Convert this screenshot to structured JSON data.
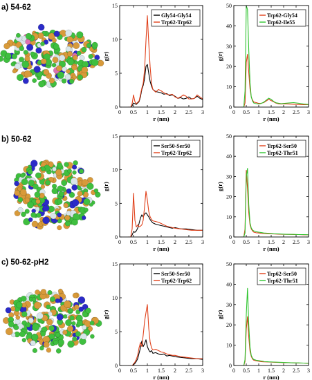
{
  "figure": {
    "rows": [
      {
        "label": "a) 54-62",
        "snapshot_description": "protein-aggregate-snapshot"
      },
      {
        "label": "b) 50-62",
        "snapshot_description": "protein-aggregate-snapshot"
      },
      {
        "label": "c) 50-62-pH2",
        "snapshot_description": "protein-aggregate-snapshot"
      }
    ],
    "snapshot_colors": {
      "green": "#3fbf3f",
      "orange": "#d89a3a",
      "blue": "#2b2bc8",
      "white": "#d8e6ea",
      "pink": "#e070b0"
    }
  },
  "chart_data": [
    {
      "type": "line",
      "xlabel": "r (nm)",
      "ylabel": "g(r)",
      "xlim": [
        0,
        3
      ],
      "ylim": [
        0,
        15
      ],
      "xticks": [
        0,
        0.5,
        1,
        1.5,
        2,
        2.5,
        3
      ],
      "yticks": [
        0,
        5,
        10,
        15
      ],
      "xtick_labels": [
        "0",
        "0.5",
        "1",
        "1.5",
        "2",
        "2.5",
        "3"
      ],
      "ytick_labels": [
        "0",
        "5",
        "10",
        "15"
      ],
      "legend_position": "top-right",
      "series": [
        {
          "name": "Gly54-Gly54",
          "color": "#000000",
          "x": [
            0.3,
            0.4,
            0.45,
            0.5,
            0.55,
            0.6,
            0.65,
            0.7,
            0.75,
            0.8,
            0.85,
            0.9,
            0.95,
            1.0,
            1.05,
            1.1,
            1.15,
            1.2,
            1.3,
            1.4,
            1.5,
            1.6,
            1.7,
            1.8,
            1.9,
            2.0,
            2.1,
            2.2,
            2.3,
            2.4,
            2.5,
            2.6,
            2.7,
            2.8,
            2.9,
            3.0
          ],
          "y": [
            0,
            0,
            0.2,
            0.6,
            0.5,
            0.4,
            0.6,
            0.8,
            1.5,
            2.6,
            3.2,
            4.2,
            6.0,
            6.3,
            5.0,
            3.8,
            3.1,
            2.6,
            2.3,
            2.2,
            2.1,
            1.9,
            2.0,
            1.7,
            1.8,
            1.6,
            1.3,
            1.4,
            1.2,
            1.3,
            1.5,
            1.2,
            1.3,
            1.6,
            1.3,
            1.1
          ]
        },
        {
          "name": "Trp62-Trp62",
          "color": "#e0401a",
          "x": [
            0.3,
            0.4,
            0.45,
            0.5,
            0.55,
            0.6,
            0.65,
            0.7,
            0.75,
            0.8,
            0.85,
            0.9,
            0.95,
            1.0,
            1.05,
            1.1,
            1.15,
            1.2,
            1.3,
            1.4,
            1.5,
            1.6,
            1.7,
            1.8,
            1.9,
            2.0,
            2.1,
            2.2,
            2.3,
            2.4,
            2.5,
            2.6,
            2.7,
            2.8,
            2.9,
            3.0
          ],
          "y": [
            0,
            0,
            0.5,
            1.8,
            0.8,
            0.5,
            0.7,
            0.9,
            1.8,
            2.8,
            3.5,
            5.5,
            9.8,
            13.5,
            9.5,
            6.0,
            3.5,
            2.6,
            2.2,
            2.6,
            2.4,
            2.1,
            1.9,
            1.8,
            1.9,
            1.5,
            1.3,
            1.5,
            1.8,
            1.6,
            1.2,
            1.2,
            1.3,
            1.8,
            1.5,
            1.2
          ]
        }
      ]
    },
    {
      "type": "line",
      "xlabel": "r (nm)",
      "ylabel": "g(r)",
      "xlim": [
        0,
        3
      ],
      "ylim": [
        0,
        50
      ],
      "xticks": [
        0,
        0.5,
        1,
        1.5,
        2,
        2.5,
        3
      ],
      "yticks": [
        0,
        10,
        20,
        30,
        40,
        50
      ],
      "xtick_labels": [
        "0",
        "0.5",
        "1",
        "1.5",
        "2",
        "2.5",
        "3"
      ],
      "ytick_labels": [
        "0",
        "10",
        "20",
        "30",
        "40",
        "50"
      ],
      "legend_position": "top-right",
      "series": [
        {
          "name": "Trp62-Gly54",
          "color": "#e0401a",
          "x": [
            0.3,
            0.4,
            0.45,
            0.5,
            0.55,
            0.6,
            0.65,
            0.7,
            0.75,
            0.8,
            0.9,
            1.0,
            1.1,
            1.2,
            1.3,
            1.4,
            1.5,
            1.6,
            1.7,
            1.8,
            1.9,
            2.0,
            2.2,
            2.4,
            2.6,
            2.8,
            3.0
          ],
          "y": [
            0,
            0,
            2,
            22,
            26,
            17,
            9,
            5,
            3.5,
            2.5,
            2.2,
            1.8,
            1.9,
            2.2,
            3.0,
            3.8,
            3.2,
            2.6,
            1.9,
            1.6,
            1.5,
            1.6,
            1.5,
            1.4,
            1.3,
            1.2,
            1.2
          ]
        },
        {
          "name": "Trp62-Ile55",
          "color": "#2ec42e",
          "x": [
            0.3,
            0.4,
            0.45,
            0.5,
            0.55,
            0.6,
            0.65,
            0.7,
            0.75,
            0.8,
            0.9,
            1.0,
            1.1,
            1.2,
            1.3,
            1.4,
            1.5,
            1.6,
            1.7,
            1.8,
            1.9,
            2.0,
            2.2,
            2.4,
            2.6,
            2.8,
            3.0
          ],
          "y": [
            0,
            0,
            8,
            50,
            48,
            28,
            12,
            5,
            3,
            2,
            1.7,
            1.5,
            1.8,
            2.4,
            3.4,
            4.4,
            3.8,
            2.8,
            2.1,
            1.9,
            1.7,
            1.8,
            2.0,
            2.2,
            1.9,
            1.5,
            1.3
          ]
        }
      ]
    },
    {
      "type": "line",
      "xlabel": "r (nm)",
      "ylabel": "g(r)",
      "xlim": [
        0,
        3
      ],
      "ylim": [
        0,
        15
      ],
      "xticks": [
        0,
        0.5,
        1,
        1.5,
        2,
        2.5,
        3
      ],
      "yticks": [
        0,
        5,
        10,
        15
      ],
      "xtick_labels": [
        "0",
        "0.5",
        "1",
        "1.5",
        "2",
        "2.5",
        "3"
      ],
      "ytick_labels": [
        "0",
        "5",
        "10",
        "15"
      ],
      "legend_position": "top-right",
      "series": [
        {
          "name": "Ser50-Ser50",
          "color": "#000000",
          "x": [
            0.3,
            0.4,
            0.45,
            0.5,
            0.55,
            0.6,
            0.65,
            0.7,
            0.75,
            0.8,
            0.85,
            0.9,
            0.95,
            1.0,
            1.05,
            1.1,
            1.15,
            1.2,
            1.3,
            1.4,
            1.5,
            1.6,
            1.7,
            1.8,
            1.9,
            2.0,
            2.2,
            2.4,
            2.6,
            2.8,
            3.0
          ],
          "y": [
            0,
            0,
            0.3,
            0.8,
            0.7,
            0.9,
            1.3,
            2.0,
            2.8,
            3.3,
            3.0,
            3.4,
            3.6,
            3.3,
            3.0,
            2.6,
            2.3,
            2.1,
            1.9,
            1.8,
            1.7,
            1.6,
            1.5,
            1.4,
            1.3,
            1.4,
            1.2,
            1.2,
            1.1,
            1.0,
            1.0
          ]
        },
        {
          "name": "Trp62-Trp62",
          "color": "#e0401a",
          "x": [
            0.3,
            0.4,
            0.45,
            0.5,
            0.55,
            0.6,
            0.65,
            0.7,
            0.75,
            0.8,
            0.85,
            0.9,
            0.95,
            1.0,
            1.05,
            1.1,
            1.15,
            1.2,
            1.3,
            1.4,
            1.5,
            1.6,
            1.7,
            1.8,
            1.9,
            2.0,
            2.2,
            2.4,
            2.6,
            2.8,
            3.0
          ],
          "y": [
            0,
            0,
            1.2,
            6.5,
            2.5,
            1.5,
            1.8,
            1.5,
            1.6,
            1.8,
            2.5,
            4.5,
            6.8,
            5.5,
            3.8,
            3.0,
            2.6,
            2.4,
            2.3,
            2.2,
            2.0,
            1.8,
            1.6,
            1.5,
            1.4,
            1.3,
            1.2,
            1.1,
            1.0,
            1.0,
            1.0
          ]
        }
      ]
    },
    {
      "type": "line",
      "xlabel": "r (nm)",
      "ylabel": "g(r)",
      "xlim": [
        0,
        3
      ],
      "ylim": [
        0,
        50
      ],
      "xticks": [
        0,
        0.5,
        1,
        1.5,
        2,
        2.5,
        3
      ],
      "yticks": [
        0,
        10,
        20,
        30,
        40,
        50
      ],
      "xtick_labels": [
        "0",
        "0.5",
        "1",
        "1.5",
        "2",
        "2.5",
        "3"
      ],
      "ytick_labels": [
        "0",
        "10",
        "20",
        "30",
        "40",
        "50"
      ],
      "legend_position": "top-right",
      "series": [
        {
          "name": "Trp62-Ser50",
          "color": "#e0401a",
          "x": [
            0.3,
            0.4,
            0.45,
            0.5,
            0.55,
            0.6,
            0.65,
            0.7,
            0.75,
            0.8,
            0.9,
            1.0,
            1.1,
            1.2,
            1.4,
            1.6,
            1.8,
            2.0,
            2.2,
            2.4,
            2.6,
            2.8,
            3.0
          ],
          "y": [
            0,
            0,
            4,
            33,
            24,
            12,
            6,
            4,
            3,
            2.4,
            2.1,
            2.0,
            1.8,
            1.7,
            1.6,
            1.5,
            1.4,
            1.3,
            1.3,
            1.2,
            1.2,
            1.1,
            1.1
          ]
        },
        {
          "name": "Trp62-Thr51",
          "color": "#2ec42e",
          "x": [
            0.3,
            0.4,
            0.45,
            0.5,
            0.55,
            0.6,
            0.65,
            0.7,
            0.75,
            0.8,
            0.9,
            1.0,
            1.1,
            1.2,
            1.4,
            1.6,
            1.8,
            2.0,
            2.2,
            2.4,
            2.6,
            2.8,
            3.0
          ],
          "y": [
            0,
            0,
            2,
            30,
            34,
            16,
            7,
            4.5,
            3.5,
            3.0,
            2.6,
            2.4,
            2.2,
            2.0,
            1.8,
            1.6,
            1.5,
            1.4,
            1.3,
            1.3,
            1.2,
            1.2,
            1.1
          ]
        }
      ]
    },
    {
      "type": "line",
      "xlabel": "r (nm)",
      "ylabel": "g(r)",
      "xlim": [
        0,
        3
      ],
      "ylim": [
        0,
        15
      ],
      "xticks": [
        0,
        0.5,
        1,
        1.5,
        2,
        2.5,
        3
      ],
      "yticks": [
        0,
        5,
        10,
        15
      ],
      "xtick_labels": [
        "0",
        "0.5",
        "1",
        "1.5",
        "2",
        "2.5",
        "3"
      ],
      "ytick_labels": [
        "0",
        "5",
        "10",
        "15"
      ],
      "legend_position": "top-right",
      "series": [
        {
          "name": "Ser50-Ser50",
          "color": "#000000",
          "x": [
            0.3,
            0.4,
            0.45,
            0.5,
            0.55,
            0.6,
            0.65,
            0.7,
            0.75,
            0.8,
            0.85,
            0.9,
            0.95,
            1.0,
            1.05,
            1.1,
            1.15,
            1.2,
            1.3,
            1.4,
            1.5,
            1.6,
            1.7,
            1.8,
            1.9,
            2.0,
            2.2,
            2.4,
            2.6,
            2.8,
            3.0
          ],
          "y": [
            0,
            0,
            0,
            0.1,
            0.3,
            0.6,
            1.0,
            1.8,
            2.6,
            3.6,
            2.8,
            3.2,
            3.8,
            2.8,
            2.3,
            2.0,
            2.2,
            1.8,
            1.9,
            1.7,
            1.6,
            1.7,
            1.4,
            1.5,
            1.4,
            1.3,
            1.2,
            1.1,
            1.0,
            1.0,
            0.9
          ]
        },
        {
          "name": "Trp62-Trp62",
          "color": "#e0401a",
          "x": [
            0.3,
            0.4,
            0.45,
            0.5,
            0.55,
            0.6,
            0.65,
            0.7,
            0.75,
            0.8,
            0.85,
            0.9,
            0.95,
            1.0,
            1.05,
            1.1,
            1.15,
            1.2,
            1.3,
            1.4,
            1.5,
            1.6,
            1.7,
            1.8,
            1.9,
            2.0,
            2.2,
            2.4,
            2.6,
            2.8,
            3.0
          ],
          "y": [
            0,
            0,
            0,
            0.2,
            0.5,
            0.9,
            1.5,
            2.6,
            3.4,
            2.8,
            4.5,
            6.5,
            7.8,
            9.0,
            5.5,
            3.5,
            2.6,
            2.3,
            2.4,
            2.2,
            2.0,
            1.9,
            1.7,
            1.6,
            1.5,
            1.5,
            1.3,
            1.2,
            1.1,
            1.0,
            1.0
          ]
        }
      ]
    },
    {
      "type": "line",
      "xlabel": "r (nm)",
      "ylabel": "g(r)",
      "xlim": [
        0,
        3
      ],
      "ylim": [
        0,
        50
      ],
      "xticks": [
        0,
        0.5,
        1,
        1.5,
        2,
        2.5,
        3
      ],
      "yticks": [
        0,
        10,
        20,
        30,
        40,
        50
      ],
      "xtick_labels": [
        "0",
        "0.5",
        "1",
        "1.5",
        "2",
        "2.5",
        "3"
      ],
      "ytick_labels": [
        "0",
        "10",
        "20",
        "30",
        "40",
        "50"
      ],
      "legend_position": "top-right",
      "series": [
        {
          "name": "Trp62-Ser50",
          "color": "#e0401a",
          "x": [
            0.3,
            0.4,
            0.45,
            0.5,
            0.55,
            0.6,
            0.65,
            0.7,
            0.75,
            0.8,
            0.9,
            1.0,
            1.1,
            1.2,
            1.4,
            1.6,
            1.8,
            2.0,
            2.2,
            2.4,
            2.6,
            2.8,
            3.0
          ],
          "y": [
            0,
            0,
            2,
            18,
            24,
            14,
            7,
            4.5,
            3.2,
            2.6,
            2.3,
            2.1,
            1.9,
            1.8,
            1.7,
            1.6,
            1.5,
            1.4,
            1.4,
            1.3,
            1.2,
            1.2,
            1.1
          ]
        },
        {
          "name": "Trp62-Thr51",
          "color": "#2ec42e",
          "x": [
            0.3,
            0.4,
            0.45,
            0.5,
            0.55,
            0.6,
            0.65,
            0.7,
            0.75,
            0.8,
            0.9,
            1.0,
            1.1,
            1.2,
            1.4,
            1.6,
            1.8,
            2.0,
            2.2,
            2.4,
            2.6,
            2.8,
            3.0
          ],
          "y": [
            0,
            0,
            3,
            25,
            38,
            20,
            9,
            5,
            3.6,
            3.0,
            2.6,
            2.4,
            2.2,
            2.0,
            1.8,
            1.7,
            1.6,
            1.5,
            1.4,
            1.3,
            1.3,
            1.2,
            1.1
          ]
        }
      ]
    }
  ]
}
